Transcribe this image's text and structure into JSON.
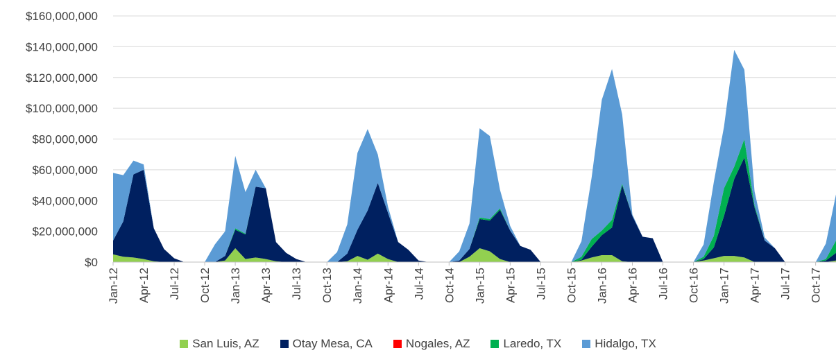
{
  "chart_data": {
    "type": "area",
    "stacked": true,
    "grid": "horizontal",
    "legend_position": "bottom",
    "ylim": [
      0,
      160000000
    ],
    "y_ticks": [
      "$0",
      "$20,000,000",
      "$40,000,000",
      "$60,000,000",
      "$80,000,000",
      "$100,000,000",
      "$120,000,000",
      "$140,000,000",
      "$160,000,000"
    ],
    "y_tick_values": [
      0,
      20000000,
      40000000,
      60000000,
      80000000,
      100000000,
      120000000,
      140000000,
      160000000
    ],
    "x": [
      "Jan-12",
      "Feb-12",
      "Mar-12",
      "Apr-12",
      "May-12",
      "Jun-12",
      "Jul-12",
      "Aug-12",
      "Sep-12",
      "Oct-12",
      "Nov-12",
      "Dec-12",
      "Jan-13",
      "Feb-13",
      "Mar-13",
      "Apr-13",
      "May-13",
      "Jun-13",
      "Jul-13",
      "Aug-13",
      "Sep-13",
      "Oct-13",
      "Nov-13",
      "Dec-13",
      "Jan-14",
      "Feb-14",
      "Mar-14",
      "Apr-14",
      "May-14",
      "Jun-14",
      "Jul-14",
      "Aug-14",
      "Sep-14",
      "Oct-14",
      "Nov-14",
      "Dec-14",
      "Jan-15",
      "Feb-15",
      "Mar-15",
      "Apr-15",
      "May-15",
      "Jun-15",
      "Jul-15",
      "Aug-15",
      "Sep-15",
      "Oct-15",
      "Nov-15",
      "Dec-15",
      "Jan-16",
      "Feb-16",
      "Mar-16",
      "Apr-16",
      "May-16",
      "Jun-16",
      "Jul-16",
      "Aug-16",
      "Sep-16",
      "Oct-16",
      "Nov-16",
      "Dec-16",
      "Jan-17",
      "Feb-17",
      "Mar-17",
      "Apr-17",
      "May-17",
      "Jun-17",
      "Jul-17",
      "Aug-17",
      "Sep-17",
      "Oct-17",
      "Nov-17",
      "Dec-17"
    ],
    "x_tick_labels": [
      "Jan-12",
      "Apr-12",
      "Jul-12",
      "Oct-12",
      "Jan-13",
      "Apr-13",
      "Jul-13",
      "Oct-13",
      "Jan-14",
      "Apr-14",
      "Jul-14",
      "Oct-14",
      "Jan-15",
      "Apr-15",
      "Jul-15",
      "Oct-15",
      "Jan-16",
      "Apr-16",
      "Jul-16",
      "Oct-16",
      "Jan-17",
      "Apr-17",
      "Jul-17",
      "Oct-17"
    ],
    "series": [
      {
        "name": "San Luis, AZ",
        "color": "#92d050",
        "values": [
          5000000,
          3500000,
          3000000,
          2000000,
          500000,
          0,
          0,
          0,
          0,
          0,
          0,
          1000000,
          9000000,
          2000000,
          3000000,
          2000000,
          500000,
          0,
          0,
          0,
          0,
          0,
          0,
          500000,
          4000000,
          1500000,
          5500000,
          2000000,
          0,
          0,
          0,
          0,
          0,
          0,
          0,
          3500000,
          9000000,
          7000000,
          2000000,
          0,
          0,
          0,
          0,
          0,
          0,
          0,
          1000000,
          3000000,
          4500000,
          4500000,
          500000,
          0,
          0,
          0,
          0,
          0,
          0,
          0,
          1000000,
          2500000,
          4000000,
          4000000,
          3000000,
          0,
          0,
          0,
          0,
          0,
          0,
          0,
          0,
          1000000
        ]
      },
      {
        "name": "Otay Mesa, CA",
        "color": "#002060",
        "values": [
          9000000,
          23000000,
          54000000,
          58000000,
          21500000,
          8500000,
          2500000,
          0,
          0,
          0,
          0,
          3000000,
          12000000,
          16000000,
          46000000,
          46000000,
          12500000,
          6000000,
          2000000,
          0,
          0,
          0,
          0,
          5000000,
          17000000,
          32000000,
          46000000,
          30000000,
          13000000,
          8000000,
          1000000,
          0,
          0,
          0,
          1000000,
          5000000,
          19000000,
          20000000,
          32000000,
          20500000,
          10500000,
          8000000,
          0,
          0,
          0,
          0,
          500000,
          7000000,
          13000000,
          18000000,
          49500000,
          30000000,
          16500000,
          15500000,
          0,
          0,
          0,
          0,
          1000000,
          7000000,
          26000000,
          50000000,
          65000000,
          35500000,
          14000000,
          9000000,
          0,
          0,
          0,
          0,
          1000000,
          5000000
        ]
      },
      {
        "name": "Nogales, AZ",
        "color": "#ff0000",
        "values": [
          0,
          0,
          0,
          0,
          0,
          0,
          0,
          0,
          0,
          0,
          0,
          0,
          0,
          0,
          0,
          0,
          0,
          0,
          0,
          0,
          0,
          0,
          0,
          0,
          0,
          0,
          0,
          0,
          0,
          0,
          0,
          0,
          0,
          0,
          0,
          0,
          0,
          0,
          0,
          0,
          0,
          0,
          0,
          0,
          0,
          0,
          0,
          0,
          0,
          0,
          0,
          0,
          0,
          0,
          0,
          0,
          0,
          0,
          0,
          0,
          0,
          0,
          0,
          0,
          0,
          0,
          0,
          0,
          0,
          0,
          0,
          0
        ]
      },
      {
        "name": "Laredo, TX",
        "color": "#00b050",
        "values": [
          0,
          0,
          0,
          0,
          0,
          0,
          0,
          0,
          0,
          0,
          0,
          0,
          1000000,
          500000,
          0,
          0,
          0,
          0,
          0,
          0,
          0,
          0,
          0,
          0,
          0,
          0,
          0,
          0,
          0,
          0,
          0,
          0,
          0,
          0,
          0,
          0,
          1000000,
          1000000,
          1000000,
          0,
          0,
          0,
          0,
          0,
          0,
          0,
          2000000,
          5000000,
          3000000,
          5000000,
          1000000,
          0,
          0,
          0,
          0,
          0,
          0,
          0,
          1500000,
          7500000,
          18000000,
          8000000,
          12000000,
          1500000,
          0,
          0,
          0,
          0,
          0,
          0,
          1000000,
          8000000
        ]
      },
      {
        "name": "Hidalgo, TX",
        "color": "#5b9bd5",
        "values": [
          44000000,
          30000000,
          9000000,
          3500000,
          0,
          0,
          0,
          0,
          0,
          0,
          11500000,
          16000000,
          47000000,
          27000000,
          11000000,
          0,
          0,
          0,
          0,
          0,
          0,
          0,
          6500000,
          19000000,
          50000000,
          53000000,
          18500000,
          4000000,
          0,
          0,
          0,
          0,
          0,
          0,
          6000000,
          16500000,
          58000000,
          54000000,
          12000000,
          3000000,
          0,
          0,
          0,
          0,
          0,
          0,
          10000000,
          40000000,
          85000000,
          98000000,
          45000000,
          1000000,
          0,
          0,
          0,
          0,
          0,
          0,
          8000000,
          35000000,
          40000000,
          76000000,
          45000000,
          9000000,
          2000000,
          0,
          0,
          0,
          0,
          0,
          10000000,
          30000000
        ]
      }
    ]
  }
}
